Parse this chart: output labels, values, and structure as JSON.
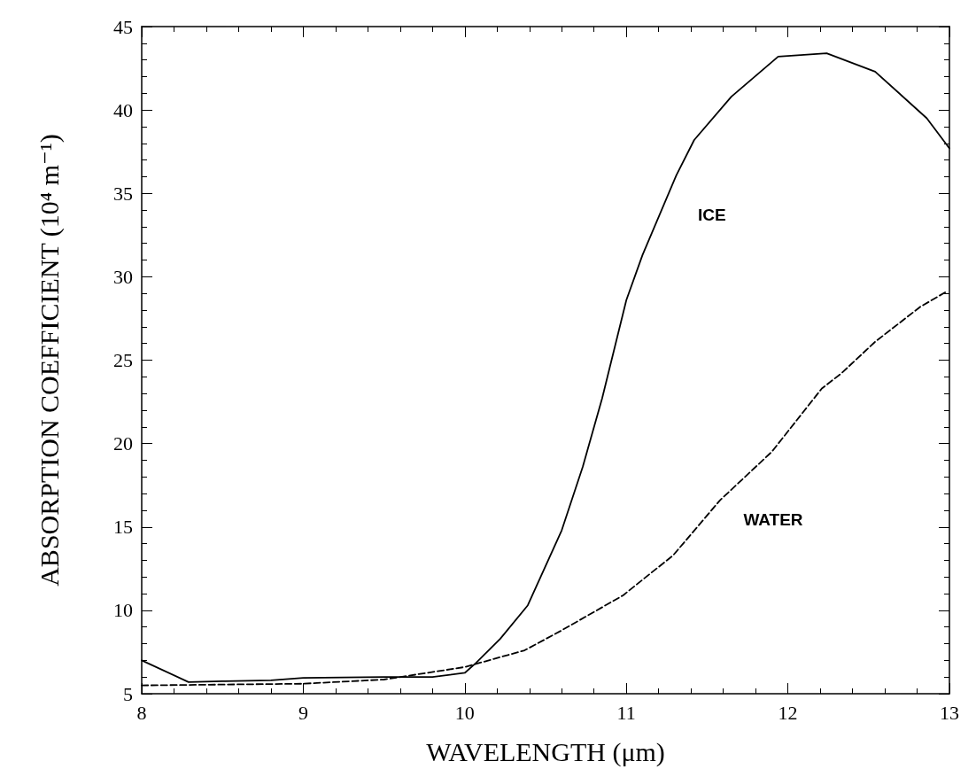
{
  "chart_data": {
    "type": "line",
    "xlabel": "WAVELENGTH (μm)",
    "ylabel": "ABSORPTION COEFFICIENT (10⁴ m⁻¹)",
    "xlim": [
      8,
      13
    ],
    "xticks": [
      8,
      9,
      10,
      11,
      12,
      13
    ],
    "ylim": [
      5,
      45
    ],
    "yticks": [
      5,
      10,
      15,
      20,
      25,
      30,
      35,
      40,
      45
    ],
    "grid": false,
    "legend": false,
    "marker": "none",
    "series": [
      {
        "name": "ICE",
        "color": "#000000",
        "line_style": "solid",
        "x": [
          8.0,
          8.29,
          8.5,
          8.8,
          9.0,
          9.5,
          9.8,
          10.0,
          10.07,
          10.22,
          10.39,
          10.6,
          10.73,
          10.85,
          11.0,
          11.1,
          11.31,
          11.42,
          11.65,
          11.94,
          12.24,
          12.54,
          12.86,
          13.0
        ],
        "values": [
          7.0,
          5.7,
          5.75,
          5.8,
          5.95,
          6.0,
          6.0,
          6.25,
          6.85,
          8.3,
          10.3,
          14.8,
          18.6,
          22.7,
          28.6,
          31.3,
          36.1,
          38.2,
          40.8,
          43.2,
          43.4,
          42.3,
          39.5,
          37.7
        ]
      },
      {
        "name": "WATER",
        "color": "#000000",
        "line_style": "dashed",
        "x": [
          8.0,
          9.0,
          9.5,
          10.0,
          10.37,
          10.6,
          10.98,
          11.29,
          11.58,
          11.9,
          12.21,
          12.33,
          12.54,
          12.82,
          12.98
        ],
        "values": [
          5.5,
          5.6,
          5.85,
          6.6,
          7.6,
          8.8,
          10.9,
          13.3,
          16.6,
          19.5,
          23.3,
          24.2,
          26.1,
          28.2,
          29.1
        ]
      }
    ]
  }
}
